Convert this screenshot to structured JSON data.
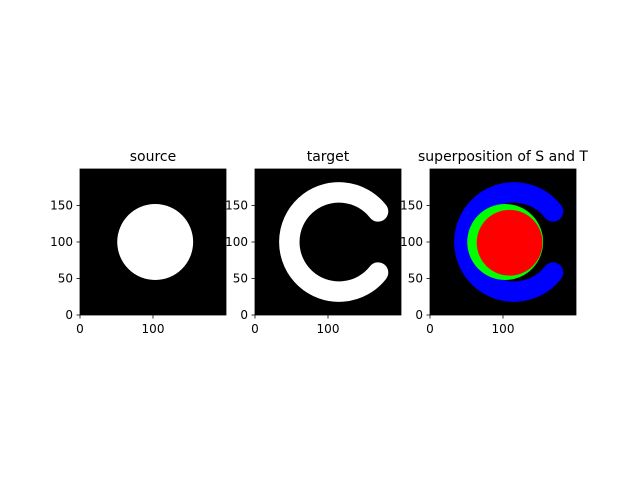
{
  "chart_data": [
    {
      "type": "image",
      "title": "source",
      "xlim": [
        0,
        200
      ],
      "ylim": [
        0,
        200
      ],
      "xticks": [
        0,
        100
      ],
      "yticks": [
        0,
        50,
        100,
        150
      ],
      "background": "#000000",
      "shapes": [
        {
          "kind": "disk",
          "color": "#ffffff",
          "center": [
            103,
            100
          ],
          "radius": 52
        }
      ]
    },
    {
      "type": "image",
      "title": "target",
      "xlim": [
        0,
        200
      ],
      "ylim": [
        0,
        200
      ],
      "xticks": [
        0,
        100
      ],
      "yticks": [
        0,
        50,
        100,
        150
      ],
      "background": "#000000",
      "shapes": [
        {
          "kind": "arc",
          "color": "#ffffff",
          "center": [
            115,
            100
          ],
          "radius": 68,
          "thickness": 28,
          "start_deg": 38,
          "end_deg": 322
        }
      ]
    },
    {
      "type": "image",
      "title": "superposition of S and T",
      "xlim": [
        0,
        200
      ],
      "ylim": [
        0,
        200
      ],
      "xticks": [
        0,
        100
      ],
      "yticks": [
        0,
        50,
        100,
        150
      ],
      "background": "#000000",
      "shapes": [
        {
          "kind": "arc",
          "color": "#0000ff",
          "center": [
            115,
            100
          ],
          "radius": 68,
          "thickness": 28,
          "start_deg": 38,
          "end_deg": 322
        },
        {
          "kind": "disk",
          "color": "#00ff00",
          "center": [
            103,
            100
          ],
          "radius": 52
        },
        {
          "kind": "disk",
          "color": "#ff0000",
          "center": [
            109,
            99
          ],
          "radius": 45
        }
      ]
    }
  ]
}
